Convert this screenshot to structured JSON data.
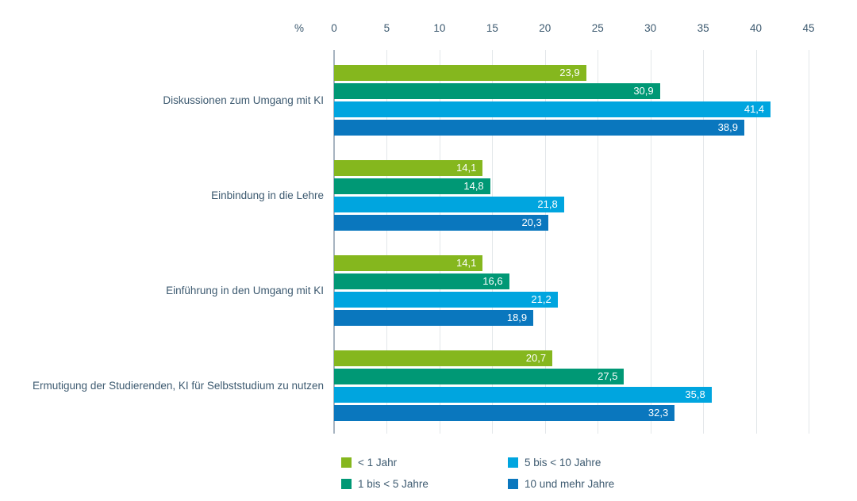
{
  "chart_data": {
    "type": "bar",
    "orientation": "horizontal",
    "axis_unit_label": "%",
    "xlim": [
      0,
      45
    ],
    "tick_step": 5,
    "tick_labels": [
      "0",
      "5",
      "10",
      "15",
      "20",
      "25",
      "30",
      "35",
      "40",
      "45"
    ],
    "grid": true,
    "legend_position": "bottom",
    "legend_columns": 2,
    "value_label_format": "decimal-comma",
    "categories": [
      "Diskussionen zum Umgang mit KI",
      "Einbindung in die Lehre",
      "Einführung in den Umgang mit KI",
      "Ermutigung der Studierenden, KI für Selbststudium zu nutzen"
    ],
    "series": [
      {
        "name": "< 1 Jahr",
        "color": "#85B71E",
        "values": [
          23.9,
          14.1,
          14.1,
          20.7
        ]
      },
      {
        "name": "1 bis < 5 Jahre",
        "color": "#009875",
        "values": [
          30.9,
          14.8,
          16.6,
          27.5
        ]
      },
      {
        "name": "5 bis < 10 Jahre",
        "color": "#00A5DF",
        "values": [
          41.4,
          21.8,
          21.2,
          35.8
        ]
      },
      {
        "name": "10 und mehr Jahre",
        "color": "#0A77BE",
        "values": [
          38.9,
          20.3,
          18.9,
          32.3
        ]
      }
    ]
  },
  "colors": {
    "background": "#FFFFFF",
    "text": "#3D5A70",
    "gridline": "#E3E7EA",
    "zero_axis": "#A7B4C0",
    "value_label": "#FFFFFF"
  }
}
